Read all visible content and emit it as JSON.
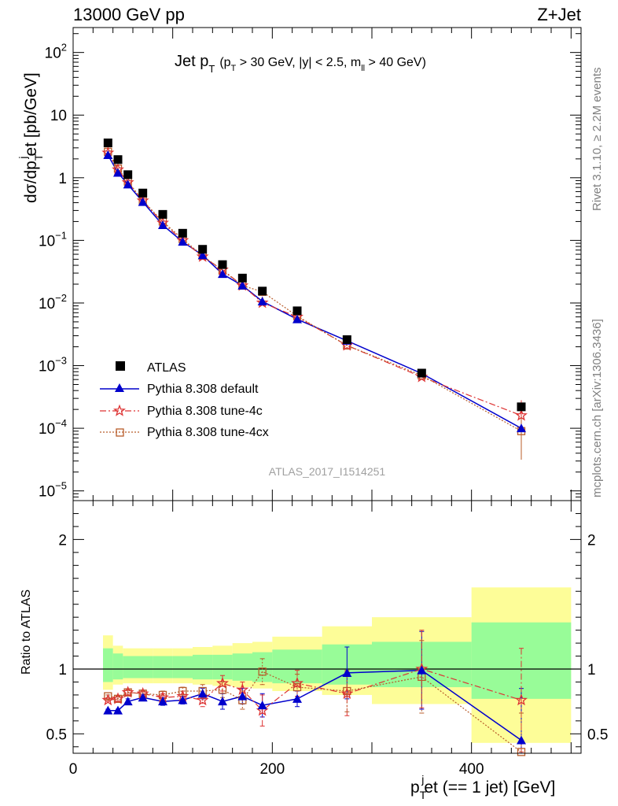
{
  "header": {
    "energy_label": "13000 GeV pp",
    "process_label": "Z+Jet"
  },
  "side_labels": {
    "rivet": "Rivet 3.1.10, ≥ 2.2M events",
    "mcplots": "mcplots.cern.ch [arXiv:1306.3436]"
  },
  "watermark": "ATLAS_2017_I1514251",
  "colors": {
    "atlas": "#000000",
    "pythia_default": "#0000cc",
    "pythia_tune4c": "#dd3333",
    "pythia_tune4cx": "#b85c2a",
    "band_inner": "#98fc98",
    "band_outer": "#fdfd98"
  },
  "chart_data": [
    {
      "type": "scatter",
      "panel": "main",
      "title_main": "Jet p",
      "title_sub_T": "T",
      "title_cuts": "(p",
      "title_cuts_rest": " > 30 GeV, |y| < 2.5, m",
      "title_cuts_ll": "ll",
      "title_cuts_end": " > 40 GeV)",
      "ylabel_parts": [
        "dσ/dp",
        "T",
        "j",
        "et [pb/GeV]"
      ],
      "yscale": "log",
      "ylim": [
        7e-06,
        250
      ],
      "xlim": [
        0,
        510
      ],
      "ytick_labels": [
        {
          "value": 1e-05,
          "base": "10",
          "exp": "−5"
        },
        {
          "value": 0.0001,
          "base": "10",
          "exp": "−4"
        },
        {
          "value": 0.001,
          "base": "10",
          "exp": "−3"
        },
        {
          "value": 0.01,
          "base": "10",
          "exp": "−2"
        },
        {
          "value": 0.1,
          "base": "10",
          "exp": "−1"
        },
        {
          "value": 1,
          "base": "1",
          "exp": ""
        },
        {
          "value": 10,
          "base": "10",
          "exp": ""
        },
        {
          "value": 100,
          "base": "10",
          "exp": "2"
        }
      ],
      "x": [
        35,
        45,
        55,
        70,
        90,
        110,
        130,
        150,
        170,
        190,
        225,
        275,
        350,
        450
      ],
      "bin_edges": [
        30,
        40,
        50,
        60,
        80,
        100,
        120,
        140,
        160,
        180,
        200,
        250,
        300,
        400,
        500
      ],
      "series": [
        {
          "name": "ATLAS",
          "style": "atlas",
          "values": [
            3.6,
            1.95,
            1.12,
            0.57,
            0.26,
            0.13,
            0.072,
            0.041,
            0.025,
            0.0155,
            0.0075,
            0.0026,
            0.00076,
            0.00022
          ]
        },
        {
          "name": "Pythia 8.308 default",
          "style": "default",
          "values": [
            2.3,
            1.2,
            0.78,
            0.41,
            0.175,
            0.095,
            0.058,
            0.029,
            0.019,
            0.0106,
            0.0055,
            0.0025,
            0.00075,
            0.0001
          ]
        },
        {
          "name": "Pythia 8.308 tune-4c",
          "style": "tune4c",
          "values": [
            2.5,
            1.35,
            0.84,
            0.43,
            0.19,
            0.1,
            0.055,
            0.034,
            0.019,
            0.0101,
            0.006,
            0.0021,
            0.00066,
            0.00016
          ]
        },
        {
          "name": "Pythia 8.308 tune-4cx",
          "style": "tune4cx",
          "values": [
            2.6,
            1.4,
            0.87,
            0.43,
            0.2,
            0.105,
            0.057,
            0.033,
            0.019,
            0.0151,
            0.0062,
            0.0021,
            0.0007,
            9e-05
          ]
        }
      ]
    },
    {
      "type": "line",
      "panel": "ratio",
      "ylabel": "Ratio to ATLAS",
      "xlabel_parts": [
        "p",
        "T",
        "j",
        "et (== 1 jet) [GeV]"
      ],
      "ylim": [
        0.35,
        2.3
      ],
      "xlim": [
        0,
        510
      ],
      "xtick_labels": [
        "0",
        "200",
        "400"
      ],
      "xtick_values": [
        0,
        200,
        400
      ],
      "ytick_labels_left": [
        "0.5",
        "1",
        "2"
      ],
      "ytick_labels_right": [
        "0.5",
        "1",
        "2"
      ],
      "ytick_values": [
        0.5,
        1,
        2
      ],
      "band_edges": [
        30,
        40,
        50,
        60,
        80,
        100,
        120,
        140,
        160,
        180,
        200,
        250,
        300,
        400,
        500
      ],
      "band_inner_low": [
        0.9,
        0.92,
        0.93,
        0.93,
        0.93,
        0.93,
        0.92,
        0.92,
        0.91,
        0.9,
        0.89,
        0.88,
        0.86,
        0.77
      ],
      "band_inner_high": [
        1.16,
        1.12,
        1.1,
        1.1,
        1.1,
        1.1,
        1.11,
        1.11,
        1.12,
        1.13,
        1.15,
        1.19,
        1.21,
        1.36
      ],
      "band_outer_low": [
        0.84,
        0.88,
        0.89,
        0.89,
        0.89,
        0.89,
        0.88,
        0.87,
        0.86,
        0.85,
        0.83,
        0.8,
        0.73,
        0.43
      ],
      "band_outer_high": [
        1.26,
        1.18,
        1.16,
        1.16,
        1.16,
        1.16,
        1.17,
        1.18,
        1.2,
        1.21,
        1.25,
        1.33,
        1.4,
        1.63
      ],
      "x": [
        35,
        45,
        55,
        70,
        90,
        110,
        130,
        150,
        170,
        190,
        225,
        275,
        350,
        450
      ],
      "series": [
        {
          "name": "Pythia 8.308 default",
          "style": "default",
          "values": [
            0.68,
            0.68,
            0.75,
            0.78,
            0.75,
            0.76,
            0.81,
            0.75,
            0.79,
            0.72,
            0.77,
            0.97,
            0.99,
            0.45
          ],
          "err": [
            0.01,
            0.01,
            0.02,
            0.02,
            0.03,
            0.03,
            0.04,
            0.06,
            0.06,
            0.09,
            0.06,
            0.2,
            0.3,
            0.4
          ]
        },
        {
          "name": "Pythia 8.308 tune-4c",
          "style": "tune4c",
          "values": [
            0.76,
            0.77,
            0.82,
            0.81,
            0.78,
            0.79,
            0.76,
            0.89,
            0.84,
            0.68,
            0.89,
            0.81,
            1.0,
            0.76
          ],
          "err": [
            0.01,
            0.02,
            0.02,
            0.02,
            0.03,
            0.04,
            0.05,
            0.06,
            0.06,
            0.12,
            0.1,
            0.17,
            0.3,
            0.4
          ]
        },
        {
          "name": "Pythia 8.308 tune-4cx",
          "style": "tune4cx",
          "values": [
            0.79,
            0.77,
            0.82,
            0.81,
            0.8,
            0.83,
            0.83,
            0.84,
            0.76,
            0.98,
            0.86,
            0.83,
            0.94,
            0.36
          ],
          "err": [
            0.01,
            0.02,
            0.02,
            0.02,
            0.03,
            0.03,
            0.05,
            0.06,
            0.07,
            0.1,
            0.1,
            0.16,
            0.28,
            0.3
          ]
        }
      ]
    }
  ]
}
